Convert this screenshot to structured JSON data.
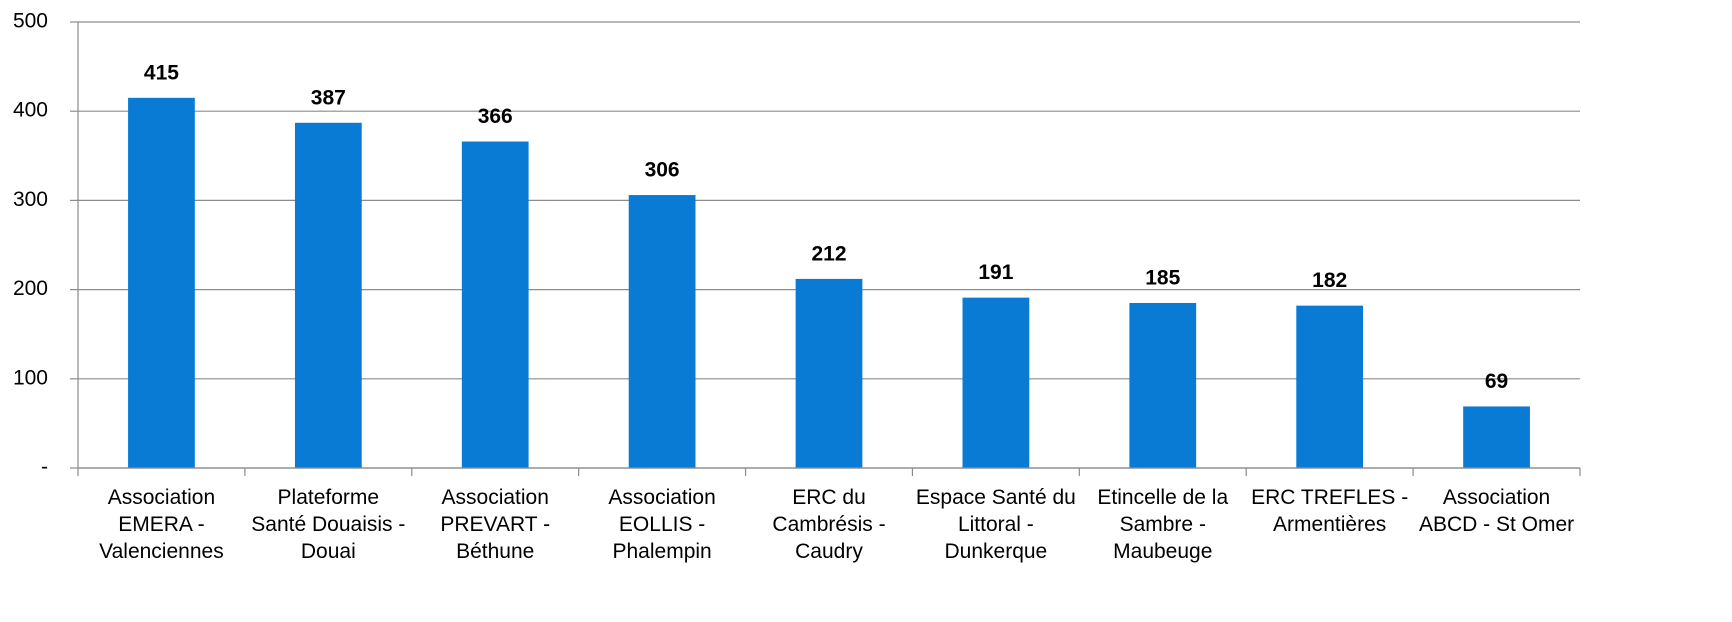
{
  "chart_data": {
    "type": "bar",
    "categories": [
      "Association EMERA - Valenciennes",
      "Plateforme Santé Douaisis - Douai",
      "Association PREVART - Béthune",
      "Association EOLLIS - Phalempin",
      "ERC du Cambrésis - Caudry",
      "Espace Santé du Littoral - Dunkerque",
      "Etincelle de la Sambre - Maubeuge",
      "ERC TREFLES - Armentières",
      "Association ABCD - St Omer"
    ],
    "values": [
      415,
      387,
      366,
      306,
      212,
      191,
      185,
      182,
      69
    ],
    "color": "#0a7bd4",
    "ylim": [
      0,
      500
    ],
    "yticks": [
      {
        "value": 0,
        "label": "-"
      },
      100,
      200,
      300,
      400,
      500
    ],
    "grid": true
  }
}
